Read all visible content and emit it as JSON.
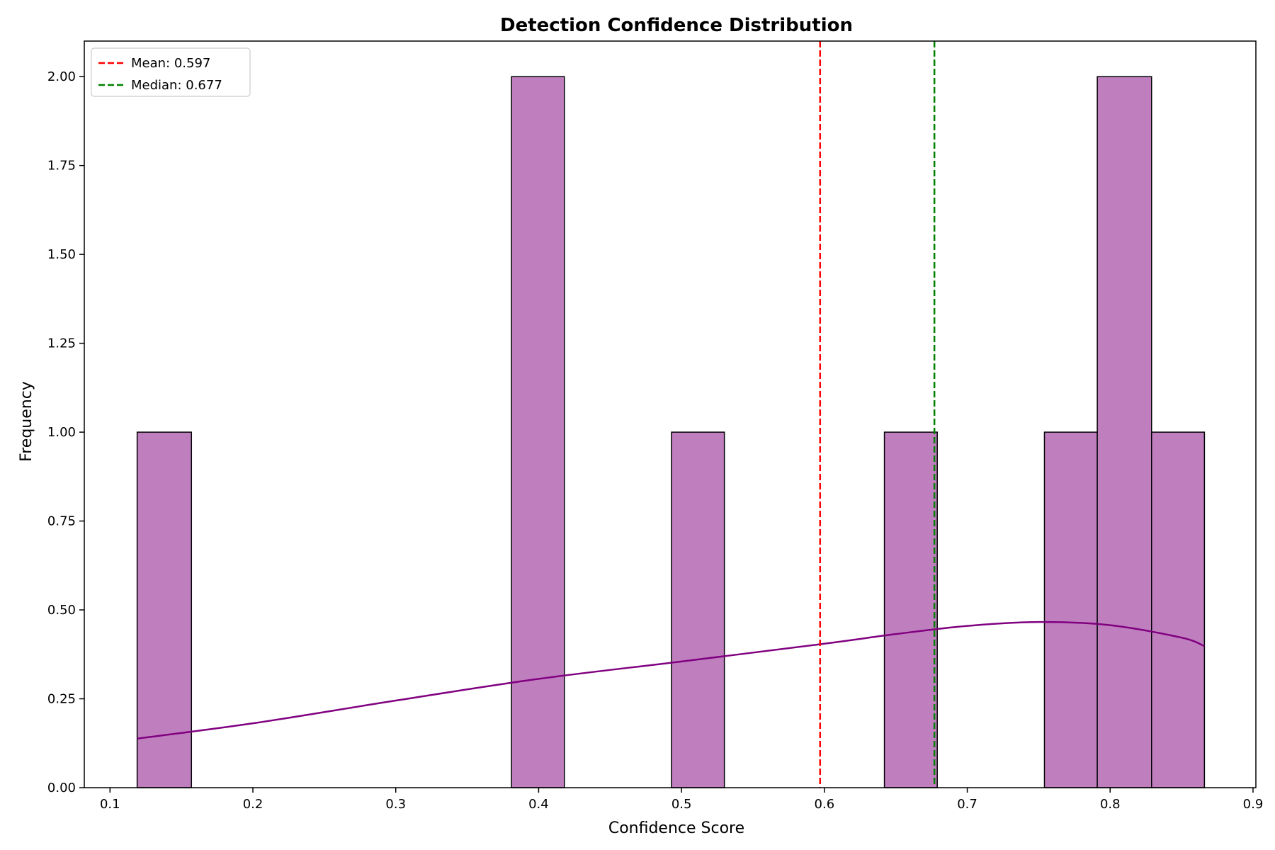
{
  "chart_data": {
    "type": "bar",
    "title": "Detection Confidence Distribution",
    "xlabel": "Confidence Score",
    "ylabel": "Frequency",
    "xlim": [
      0.082,
      0.902
    ],
    "ylim": [
      0,
      2.1
    ],
    "x_ticks": [
      0.1,
      0.2,
      0.3,
      0.4,
      0.5,
      0.6,
      0.7,
      0.8,
      0.9
    ],
    "x_tick_labels": [
      "0.1",
      "0.2",
      "0.3",
      "0.4",
      "0.5",
      "0.6",
      "0.7",
      "0.8",
      "0.9"
    ],
    "y_ticks": [
      0,
      0.25,
      0.5,
      0.75,
      1.0,
      1.25,
      1.5,
      1.75,
      2.0
    ],
    "y_tick_labels": [
      "0.00",
      "0.25",
      "0.50",
      "0.75",
      "1.00",
      "1.25",
      "1.50",
      "1.75",
      "2.00"
    ],
    "grid": false,
    "bar_color": "#bf7fbf",
    "bar_edge_color": "#000000",
    "bins": [
      {
        "x0": 0.119,
        "x1": 0.157,
        "count": 1
      },
      {
        "x0": 0.381,
        "x1": 0.418,
        "count": 2
      },
      {
        "x0": 0.493,
        "x1": 0.53,
        "count": 1
      },
      {
        "x0": 0.642,
        "x1": 0.679,
        "count": 1
      },
      {
        "x0": 0.754,
        "x1": 0.791,
        "count": 1
      },
      {
        "x0": 0.791,
        "x1": 0.829,
        "count": 2
      },
      {
        "x0": 0.829,
        "x1": 0.866,
        "count": 1
      }
    ],
    "kde": {
      "color": "#800080",
      "x": [
        0.119,
        0.2,
        0.3,
        0.4,
        0.5,
        0.6,
        0.65,
        0.7,
        0.75,
        0.8,
        0.85,
        0.866
      ],
      "y": [
        0.138,
        0.181,
        0.245,
        0.306,
        0.355,
        0.405,
        0.432,
        0.455,
        0.466,
        0.457,
        0.422,
        0.398
      ]
    },
    "reference_lines": [
      {
        "label": "Mean: 0.597",
        "x": 0.597,
        "color": "#ff0000",
        "style": "dashed"
      },
      {
        "label": "Median: 0.677",
        "x": 0.677,
        "color": "#008000",
        "style": "dashed"
      }
    ],
    "legend_position": "top-left"
  }
}
